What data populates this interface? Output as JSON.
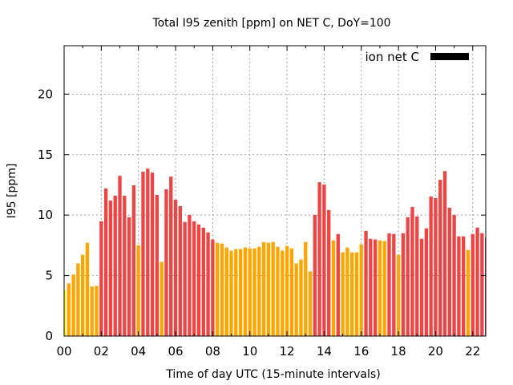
{
  "chart_data": {
    "type": "bar",
    "title": "Total I95 zenith [ppm] on NET C, DoY=100",
    "xlabel": "Time of day UTC (15-minute intervals)",
    "ylabel": "I95 [ppm]",
    "xlim": [
      0,
      22.7
    ],
    "ylim": [
      0,
      24
    ],
    "grid": true,
    "x_ticks": [
      {
        "value": 0,
        "label": "00"
      },
      {
        "value": 2,
        "label": "02"
      },
      {
        "value": 4,
        "label": "04"
      },
      {
        "value": 6,
        "label": "06"
      },
      {
        "value": 8,
        "label": "08"
      },
      {
        "value": 10,
        "label": "10"
      },
      {
        "value": 12,
        "label": "12"
      },
      {
        "value": 14,
        "label": "14"
      },
      {
        "value": 16,
        "label": "16"
      },
      {
        "value": 18,
        "label": "18"
      },
      {
        "value": 20,
        "label": "20"
      },
      {
        "value": 22,
        "label": "22"
      }
    ],
    "y_ticks": [
      {
        "value": 0,
        "label": "0"
      },
      {
        "value": 5,
        "label": "5"
      },
      {
        "value": 10,
        "label": "10"
      },
      {
        "value": 15,
        "label": "15"
      },
      {
        "value": 20,
        "label": "20"
      }
    ],
    "legend": {
      "label": "ion net C",
      "color": "#000000",
      "position": "top-right"
    },
    "interval_hours": 0.25,
    "category_colors": {
      "low": "#ffff00",
      "medium": "#ffa500",
      "high": "#ee4444"
    },
    "series": [
      {
        "name": "ion net C",
        "values": [
          {
            "hour": 0.0,
            "value": 3.8,
            "level": "low"
          },
          {
            "hour": 0.25,
            "value": 4.35,
            "level": "medium"
          },
          {
            "hour": 0.5,
            "value": 5.08,
            "level": "medium"
          },
          {
            "hour": 0.75,
            "value": 6.0,
            "level": "medium"
          },
          {
            "hour": 1.0,
            "value": 6.72,
            "level": "medium"
          },
          {
            "hour": 1.25,
            "value": 7.71,
            "level": "medium"
          },
          {
            "hour": 1.5,
            "value": 4.09,
            "level": "medium"
          },
          {
            "hour": 1.75,
            "value": 4.15,
            "level": "medium"
          },
          {
            "hour": 2.0,
            "value": 9.49,
            "level": "high"
          },
          {
            "hour": 2.25,
            "value": 12.2,
            "level": "high"
          },
          {
            "hour": 2.5,
            "value": 11.2,
            "level": "high"
          },
          {
            "hour": 2.75,
            "value": 11.6,
            "level": "high"
          },
          {
            "hour": 3.0,
            "value": 13.25,
            "level": "high"
          },
          {
            "hour": 3.25,
            "value": 11.6,
            "level": "high"
          },
          {
            "hour": 3.5,
            "value": 9.82,
            "level": "high"
          },
          {
            "hour": 3.75,
            "value": 12.46,
            "level": "high"
          },
          {
            "hour": 4.0,
            "value": 7.51,
            "level": "medium"
          },
          {
            "hour": 4.25,
            "value": 13.58,
            "level": "high"
          },
          {
            "hour": 4.5,
            "value": 13.84,
            "level": "high"
          },
          {
            "hour": 4.75,
            "value": 13.51,
            "level": "high"
          },
          {
            "hour": 5.0,
            "value": 11.67,
            "level": "high"
          },
          {
            "hour": 5.25,
            "value": 6.13,
            "level": "medium"
          },
          {
            "hour": 5.5,
            "value": 12.13,
            "level": "high"
          },
          {
            "hour": 5.75,
            "value": 13.18,
            "level": "high"
          },
          {
            "hour": 6.0,
            "value": 11.27,
            "level": "high"
          },
          {
            "hour": 6.25,
            "value": 10.74,
            "level": "high"
          },
          {
            "hour": 6.5,
            "value": 9.43,
            "level": "high"
          },
          {
            "hour": 6.75,
            "value": 10.02,
            "level": "high"
          },
          {
            "hour": 7.0,
            "value": 9.49,
            "level": "high"
          },
          {
            "hour": 7.25,
            "value": 9.23,
            "level": "high"
          },
          {
            "hour": 7.5,
            "value": 8.96,
            "level": "high"
          },
          {
            "hour": 7.75,
            "value": 8.57,
            "level": "high"
          },
          {
            "hour": 8.0,
            "value": 7.98,
            "level": "high"
          },
          {
            "hour": 8.25,
            "value": 7.71,
            "level": "medium"
          },
          {
            "hour": 8.5,
            "value": 7.65,
            "level": "medium"
          },
          {
            "hour": 8.75,
            "value": 7.32,
            "level": "medium"
          },
          {
            "hour": 9.0,
            "value": 7.05,
            "level": "medium"
          },
          {
            "hour": 9.25,
            "value": 7.19,
            "level": "medium"
          },
          {
            "hour": 9.5,
            "value": 7.19,
            "level": "medium"
          },
          {
            "hour": 9.75,
            "value": 7.32,
            "level": "medium"
          },
          {
            "hour": 10.0,
            "value": 7.25,
            "level": "medium"
          },
          {
            "hour": 10.25,
            "value": 7.25,
            "level": "medium"
          },
          {
            "hour": 10.5,
            "value": 7.38,
            "level": "medium"
          },
          {
            "hour": 10.75,
            "value": 7.78,
            "level": "medium"
          },
          {
            "hour": 11.0,
            "value": 7.71,
            "level": "medium"
          },
          {
            "hour": 11.25,
            "value": 7.78,
            "level": "medium"
          },
          {
            "hour": 11.5,
            "value": 7.38,
            "level": "medium"
          },
          {
            "hour": 11.75,
            "value": 7.05,
            "level": "medium"
          },
          {
            "hour": 12.0,
            "value": 7.45,
            "level": "medium"
          },
          {
            "hour": 12.25,
            "value": 7.25,
            "level": "medium"
          },
          {
            "hour": 12.5,
            "value": 6.0,
            "level": "medium"
          },
          {
            "hour": 12.75,
            "value": 6.33,
            "level": "medium"
          },
          {
            "hour": 13.0,
            "value": 7.78,
            "level": "medium"
          },
          {
            "hour": 13.25,
            "value": 5.34,
            "level": "medium"
          },
          {
            "hour": 13.5,
            "value": 10.02,
            "level": "high"
          },
          {
            "hour": 13.75,
            "value": 12.72,
            "level": "high"
          },
          {
            "hour": 14.0,
            "value": 12.52,
            "level": "high"
          },
          {
            "hour": 14.25,
            "value": 10.42,
            "level": "high"
          },
          {
            "hour": 14.5,
            "value": 7.91,
            "level": "medium"
          },
          {
            "hour": 14.75,
            "value": 8.44,
            "level": "high"
          },
          {
            "hour": 15.0,
            "value": 6.92,
            "level": "medium"
          },
          {
            "hour": 15.25,
            "value": 7.32,
            "level": "medium"
          },
          {
            "hour": 15.5,
            "value": 6.92,
            "level": "medium"
          },
          {
            "hour": 15.75,
            "value": 6.92,
            "level": "medium"
          },
          {
            "hour": 16.0,
            "value": 7.58,
            "level": "medium"
          },
          {
            "hour": 16.25,
            "value": 8.7,
            "level": "high"
          },
          {
            "hour": 16.5,
            "value": 8.04,
            "level": "high"
          },
          {
            "hour": 16.75,
            "value": 7.98,
            "level": "high"
          },
          {
            "hour": 17.0,
            "value": 7.91,
            "level": "medium"
          },
          {
            "hour": 17.25,
            "value": 7.85,
            "level": "medium"
          },
          {
            "hour": 17.5,
            "value": 8.5,
            "level": "high"
          },
          {
            "hour": 17.75,
            "value": 8.44,
            "level": "high"
          },
          {
            "hour": 18.0,
            "value": 6.72,
            "level": "medium"
          },
          {
            "hour": 18.25,
            "value": 8.5,
            "level": "high"
          },
          {
            "hour": 18.5,
            "value": 9.82,
            "level": "high"
          },
          {
            "hour": 18.75,
            "value": 10.68,
            "level": "high"
          },
          {
            "hour": 19.0,
            "value": 9.89,
            "level": "high"
          },
          {
            "hour": 19.25,
            "value": 8.04,
            "level": "high"
          },
          {
            "hour": 19.5,
            "value": 8.9,
            "level": "high"
          },
          {
            "hour": 19.75,
            "value": 11.54,
            "level": "high"
          },
          {
            "hour": 20.0,
            "value": 11.41,
            "level": "high"
          },
          {
            "hour": 20.25,
            "value": 12.92,
            "level": "high"
          },
          {
            "hour": 20.5,
            "value": 13.64,
            "level": "high"
          },
          {
            "hour": 20.75,
            "value": 10.61,
            "level": "high"
          },
          {
            "hour": 21.0,
            "value": 10.02,
            "level": "high"
          },
          {
            "hour": 21.25,
            "value": 8.24,
            "level": "high"
          },
          {
            "hour": 21.5,
            "value": 8.24,
            "level": "high"
          },
          {
            "hour": 21.75,
            "value": 7.12,
            "level": "medium"
          },
          {
            "hour": 22.0,
            "value": 8.44,
            "level": "high"
          },
          {
            "hour": 22.25,
            "value": 8.97,
            "level": "high"
          },
          {
            "hour": 22.5,
            "value": 8.5,
            "level": "high"
          },
          {
            "hour": 22.75,
            "value": 8.17,
            "level": "high"
          }
        ]
      }
    ]
  }
}
